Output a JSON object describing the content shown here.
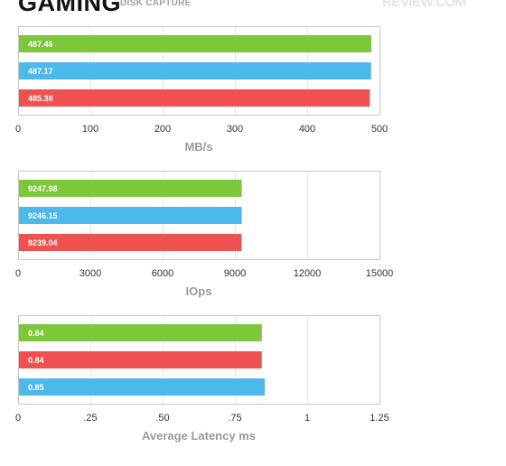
{
  "header": {
    "title": "GAMING",
    "subtitle": "DISK CAPTURE",
    "watermark": "REVIEW.COM"
  },
  "colors": {
    "green": "#7dc73b",
    "blue": "#4db8ea",
    "red": "#ef5150"
  },
  "chart_data": [
    {
      "type": "bar",
      "orientation": "horizontal",
      "xlabel": "MB/s",
      "xlim": [
        0,
        500
      ],
      "ticks": [
        "0",
        "100",
        "200",
        "300",
        "400",
        "500"
      ],
      "tick_values": [
        0,
        100,
        200,
        300,
        400,
        500
      ],
      "grid": true,
      "bars": [
        {
          "value": 487.46,
          "label": "487.46",
          "color": "#7dc73b"
        },
        {
          "value": 487.17,
          "label": "487.17",
          "color": "#4db8ea"
        },
        {
          "value": 485.38,
          "label": "485.38",
          "color": "#ef5150"
        }
      ]
    },
    {
      "type": "bar",
      "orientation": "horizontal",
      "xlabel": "IOps",
      "xlim": [
        0,
        15000
      ],
      "ticks": [
        "0",
        "3000",
        "6000",
        "9000",
        "12000",
        "15000"
      ],
      "tick_values": [
        0,
        3000,
        6000,
        9000,
        12000,
        15000
      ],
      "grid": true,
      "bars": [
        {
          "value": 9247.98,
          "label": "9247.98",
          "color": "#7dc73b"
        },
        {
          "value": 9246.15,
          "label": "9246.15",
          "color": "#4db8ea"
        },
        {
          "value": 9239.04,
          "label": "9239.04",
          "color": "#ef5150"
        }
      ]
    },
    {
      "type": "bar",
      "orientation": "horizontal",
      "xlabel": "Average Latency ms",
      "xlim": [
        0,
        1.25
      ],
      "ticks": [
        "0",
        ".25",
        ".50",
        ".75",
        "1",
        "1.25"
      ],
      "tick_values": [
        0,
        0.25,
        0.5,
        0.75,
        1,
        1.25
      ],
      "grid": true,
      "bars": [
        {
          "value": 0.84,
          "label": "0.84",
          "color": "#7dc73b"
        },
        {
          "value": 0.84,
          "label": "0.84",
          "color": "#ef5150"
        },
        {
          "value": 0.85,
          "label": "0.85",
          "color": "#4db8ea"
        }
      ]
    }
  ]
}
